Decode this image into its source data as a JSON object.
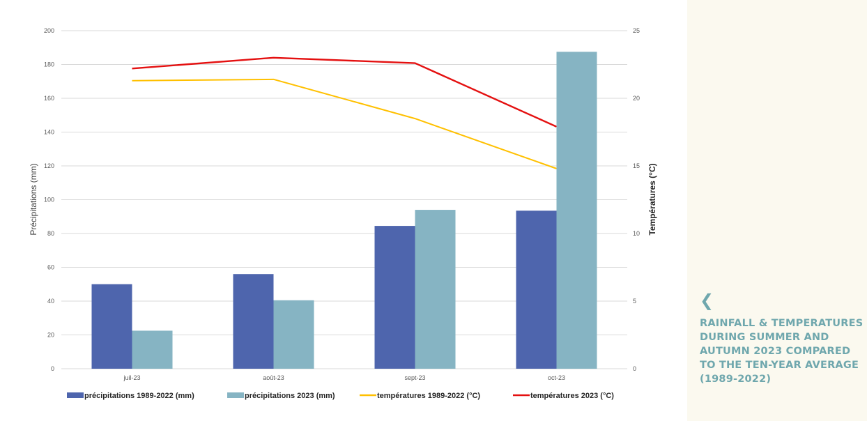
{
  "chart_data": {
    "type": "bar",
    "categories": [
      "juil-23",
      "août-23",
      "sept-23",
      "oct-23"
    ],
    "series": [
      {
        "name": "précipitations 1989-2022 (mm)",
        "type": "bar",
        "axis": "left",
        "color": "#4e65ad",
        "values": [
          50,
          56,
          84.5,
          93.5
        ]
      },
      {
        "name": "précipitations 2023 (mm)",
        "type": "bar",
        "axis": "left",
        "color": "#86b4c3",
        "values": [
          22.5,
          40.5,
          94,
          187.5
        ]
      },
      {
        "name": "températures 1989-2022 (°C)",
        "type": "line",
        "axis": "right",
        "color": "#ffc000",
        "values": [
          21.3,
          21.4,
          18.5,
          14.8
        ]
      },
      {
        "name": "températures 2023 (°C)",
        "type": "line",
        "axis": "right",
        "color": "#e41010",
        "values": [
          22.2,
          23.0,
          22.6,
          17.9
        ]
      }
    ],
    "ylabel": "Précipitations (mm)",
    "y2label": "Températures (°C)",
    "ylim": [
      0,
      200
    ],
    "y2lim": [
      0,
      25
    ],
    "yticks": [
      "0",
      "20",
      "40",
      "60",
      "80",
      "100",
      "120",
      "140",
      "160",
      "180",
      "200"
    ],
    "y2ticks": [
      "0",
      "5",
      "10",
      "15",
      "20",
      "25"
    ],
    "grid": true,
    "legend": "bottom"
  },
  "caption": {
    "chevron": "❮",
    "text": "RAINFALL & TEMPERATURES DURING SUMMER AND AUTUMN 2023 COMPARED TO THE TEN-YEAR AVERAGE (1989-2022)"
  }
}
